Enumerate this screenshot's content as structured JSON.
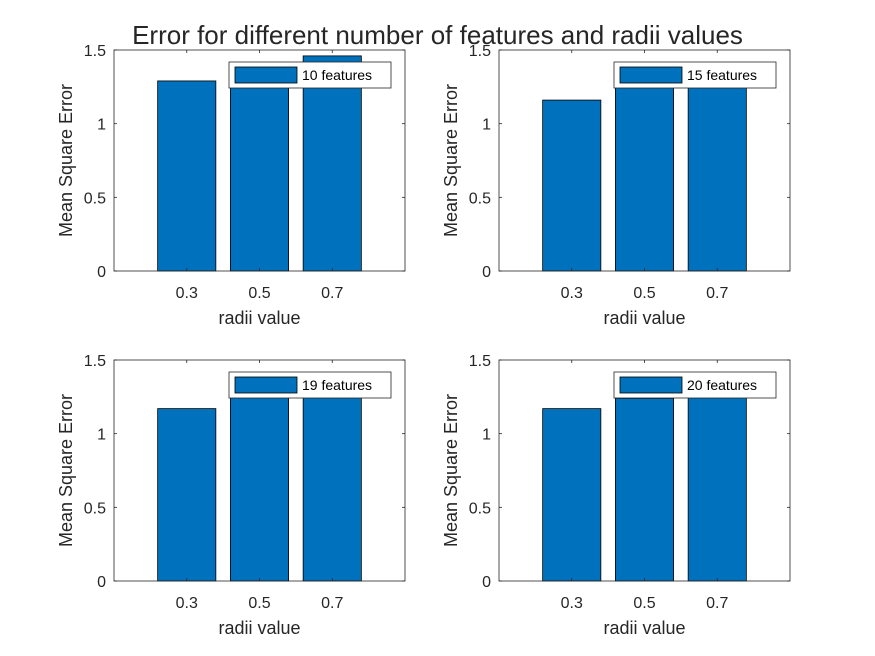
{
  "figure": {
    "title": "Error for different number of features and radii values"
  },
  "chart_data": [
    {
      "type": "bar",
      "categories": [
        "0.3",
        "0.5",
        "0.7"
      ],
      "series": [
        {
          "name": "10 features",
          "values": [
            1.29,
            1.35,
            1.46
          ]
        }
      ],
      "xlabel": "radii value",
      "ylabel": "Mean Square Error",
      "ylim": [
        0,
        1.5
      ],
      "yticks": [
        "0",
        "0.5",
        "1",
        "1.5"
      ],
      "legend_position": "top-right",
      "grid": false,
      "color": "#0072BD"
    },
    {
      "type": "bar",
      "categories": [
        "0.3",
        "0.5",
        "0.7"
      ],
      "series": [
        {
          "name": "15 features",
          "values": [
            1.16,
            1.25,
            1.28
          ]
        }
      ],
      "xlabel": "radii value",
      "ylabel": "Mean Square Error",
      "ylim": [
        0,
        1.5
      ],
      "yticks": [
        "0",
        "0.5",
        "1",
        "1.5"
      ],
      "legend_position": "top-right",
      "grid": false,
      "color": "#0072BD"
    },
    {
      "type": "bar",
      "categories": [
        "0.3",
        "0.5",
        "0.7"
      ],
      "series": [
        {
          "name": "19 features",
          "values": [
            1.17,
            1.25,
            1.27
          ]
        }
      ],
      "xlabel": "radii value",
      "ylabel": "Mean Square Error",
      "ylim": [
        0,
        1.5
      ],
      "yticks": [
        "0",
        "0.5",
        "1",
        "1.5"
      ],
      "legend_position": "top-right",
      "grid": false,
      "color": "#0072BD"
    },
    {
      "type": "bar",
      "categories": [
        "0.3",
        "0.5",
        "0.7"
      ],
      "series": [
        {
          "name": "20 features",
          "values": [
            1.17,
            1.24,
            1.27
          ]
        }
      ],
      "xlabel": "radii value",
      "ylabel": "Mean Square Error",
      "ylim": [
        0,
        1.5
      ],
      "yticks": [
        "0",
        "0.5",
        "1",
        "1.5"
      ],
      "legend_position": "top-right",
      "grid": false,
      "color": "#0072BD"
    }
  ]
}
